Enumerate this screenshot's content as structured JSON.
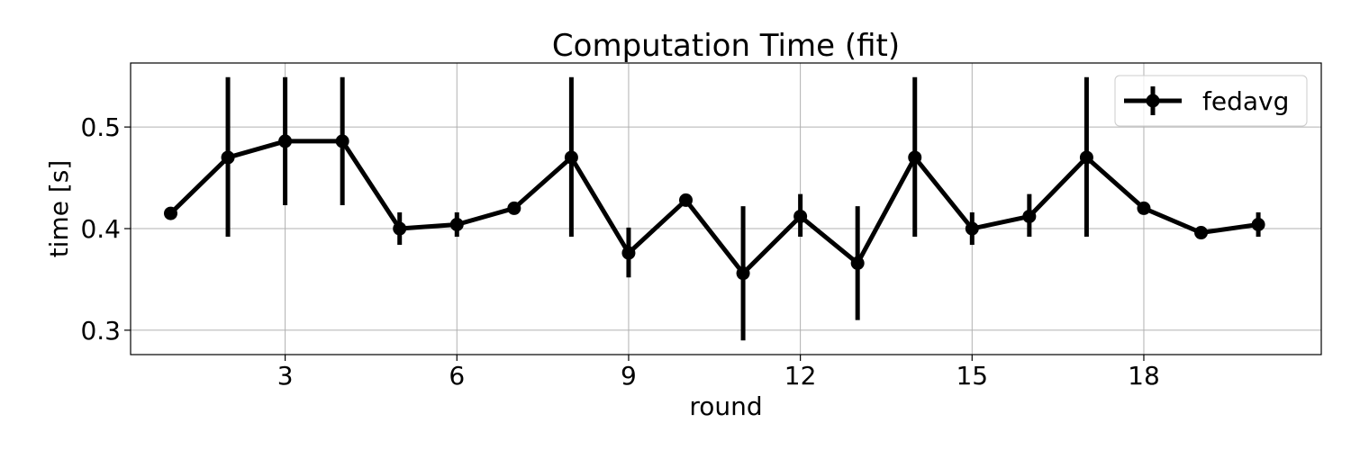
{
  "chart_data": {
    "type": "line",
    "title": "Computation Time (fit)",
    "xlabel": "round",
    "ylabel": "time [s]",
    "xlim": [
      0.3,
      21.1
    ],
    "ylim": [
      0.276,
      0.563
    ],
    "xticks": [
      3,
      6,
      9,
      12,
      15,
      18
    ],
    "yticks": [
      0.3,
      0.4,
      0.5
    ],
    "grid": true,
    "legend_position": "top-right",
    "series": [
      {
        "name": "fedavg",
        "color": "#000000",
        "x": [
          1,
          2,
          3,
          4,
          5,
          6,
          7,
          8,
          9,
          10,
          11,
          12,
          13,
          14,
          15,
          16,
          17,
          18,
          19,
          20
        ],
        "y": [
          0.415,
          0.47,
          0.486,
          0.486,
          0.4,
          0.404,
          0.42,
          0.47,
          0.376,
          0.428,
          0.356,
          0.412,
          0.366,
          0.47,
          0.4,
          0.412,
          0.47,
          0.42,
          0.396,
          0.404
        ],
        "yerr_low": [
          0.411,
          0.392,
          0.423,
          0.423,
          0.384,
          0.392,
          0.42,
          0.392,
          0.352,
          0.428,
          0.29,
          0.392,
          0.31,
          0.392,
          0.384,
          0.392,
          0.392,
          0.42,
          0.396,
          0.392
        ],
        "yerr_high": [
          0.42,
          0.549,
          0.549,
          0.549,
          0.416,
          0.416,
          0.42,
          0.549,
          0.401,
          0.428,
          0.422,
          0.434,
          0.422,
          0.549,
          0.416,
          0.434,
          0.549,
          0.42,
          0.396,
          0.416
        ]
      }
    ]
  }
}
